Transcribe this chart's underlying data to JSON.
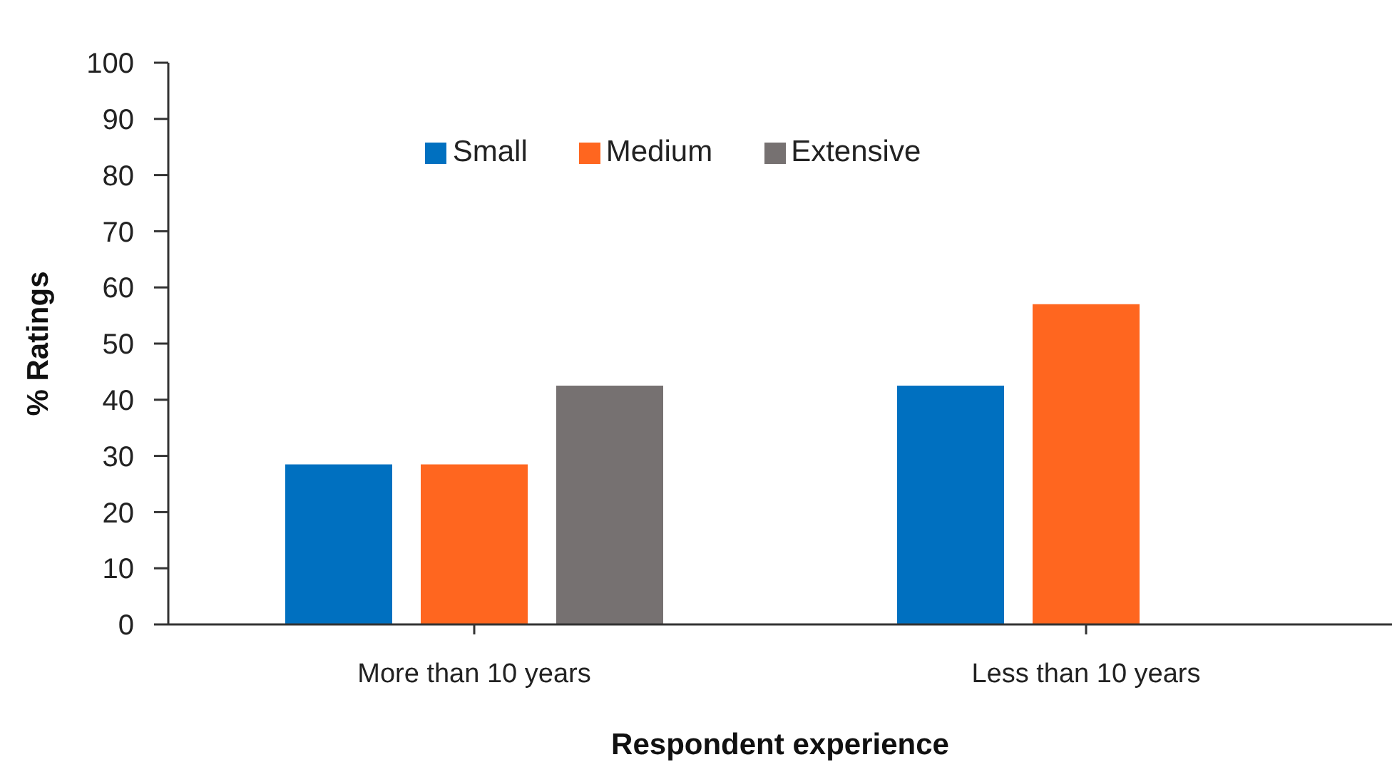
{
  "chart_data": {
    "type": "bar",
    "xlabel": "Respondent experience",
    "ylabel": "% Ratings",
    "categories": [
      "More than 10 years",
      "Less than 10 years"
    ],
    "series": [
      {
        "name": "Small",
        "color": "#0070c0",
        "values": [
          28.5,
          42.5
        ]
      },
      {
        "name": "Medium",
        "color": "#ff661f",
        "values": [
          28.5,
          57
        ]
      },
      {
        "name": "Extensive",
        "color": "#767171",
        "values": [
          42.5,
          null
        ]
      }
    ],
    "ylim": [
      0,
      100
    ],
    "yticks": [
      0,
      10,
      20,
      30,
      40,
      50,
      60,
      70,
      80,
      90,
      100
    ],
    "grid": false,
    "legend": "top"
  }
}
